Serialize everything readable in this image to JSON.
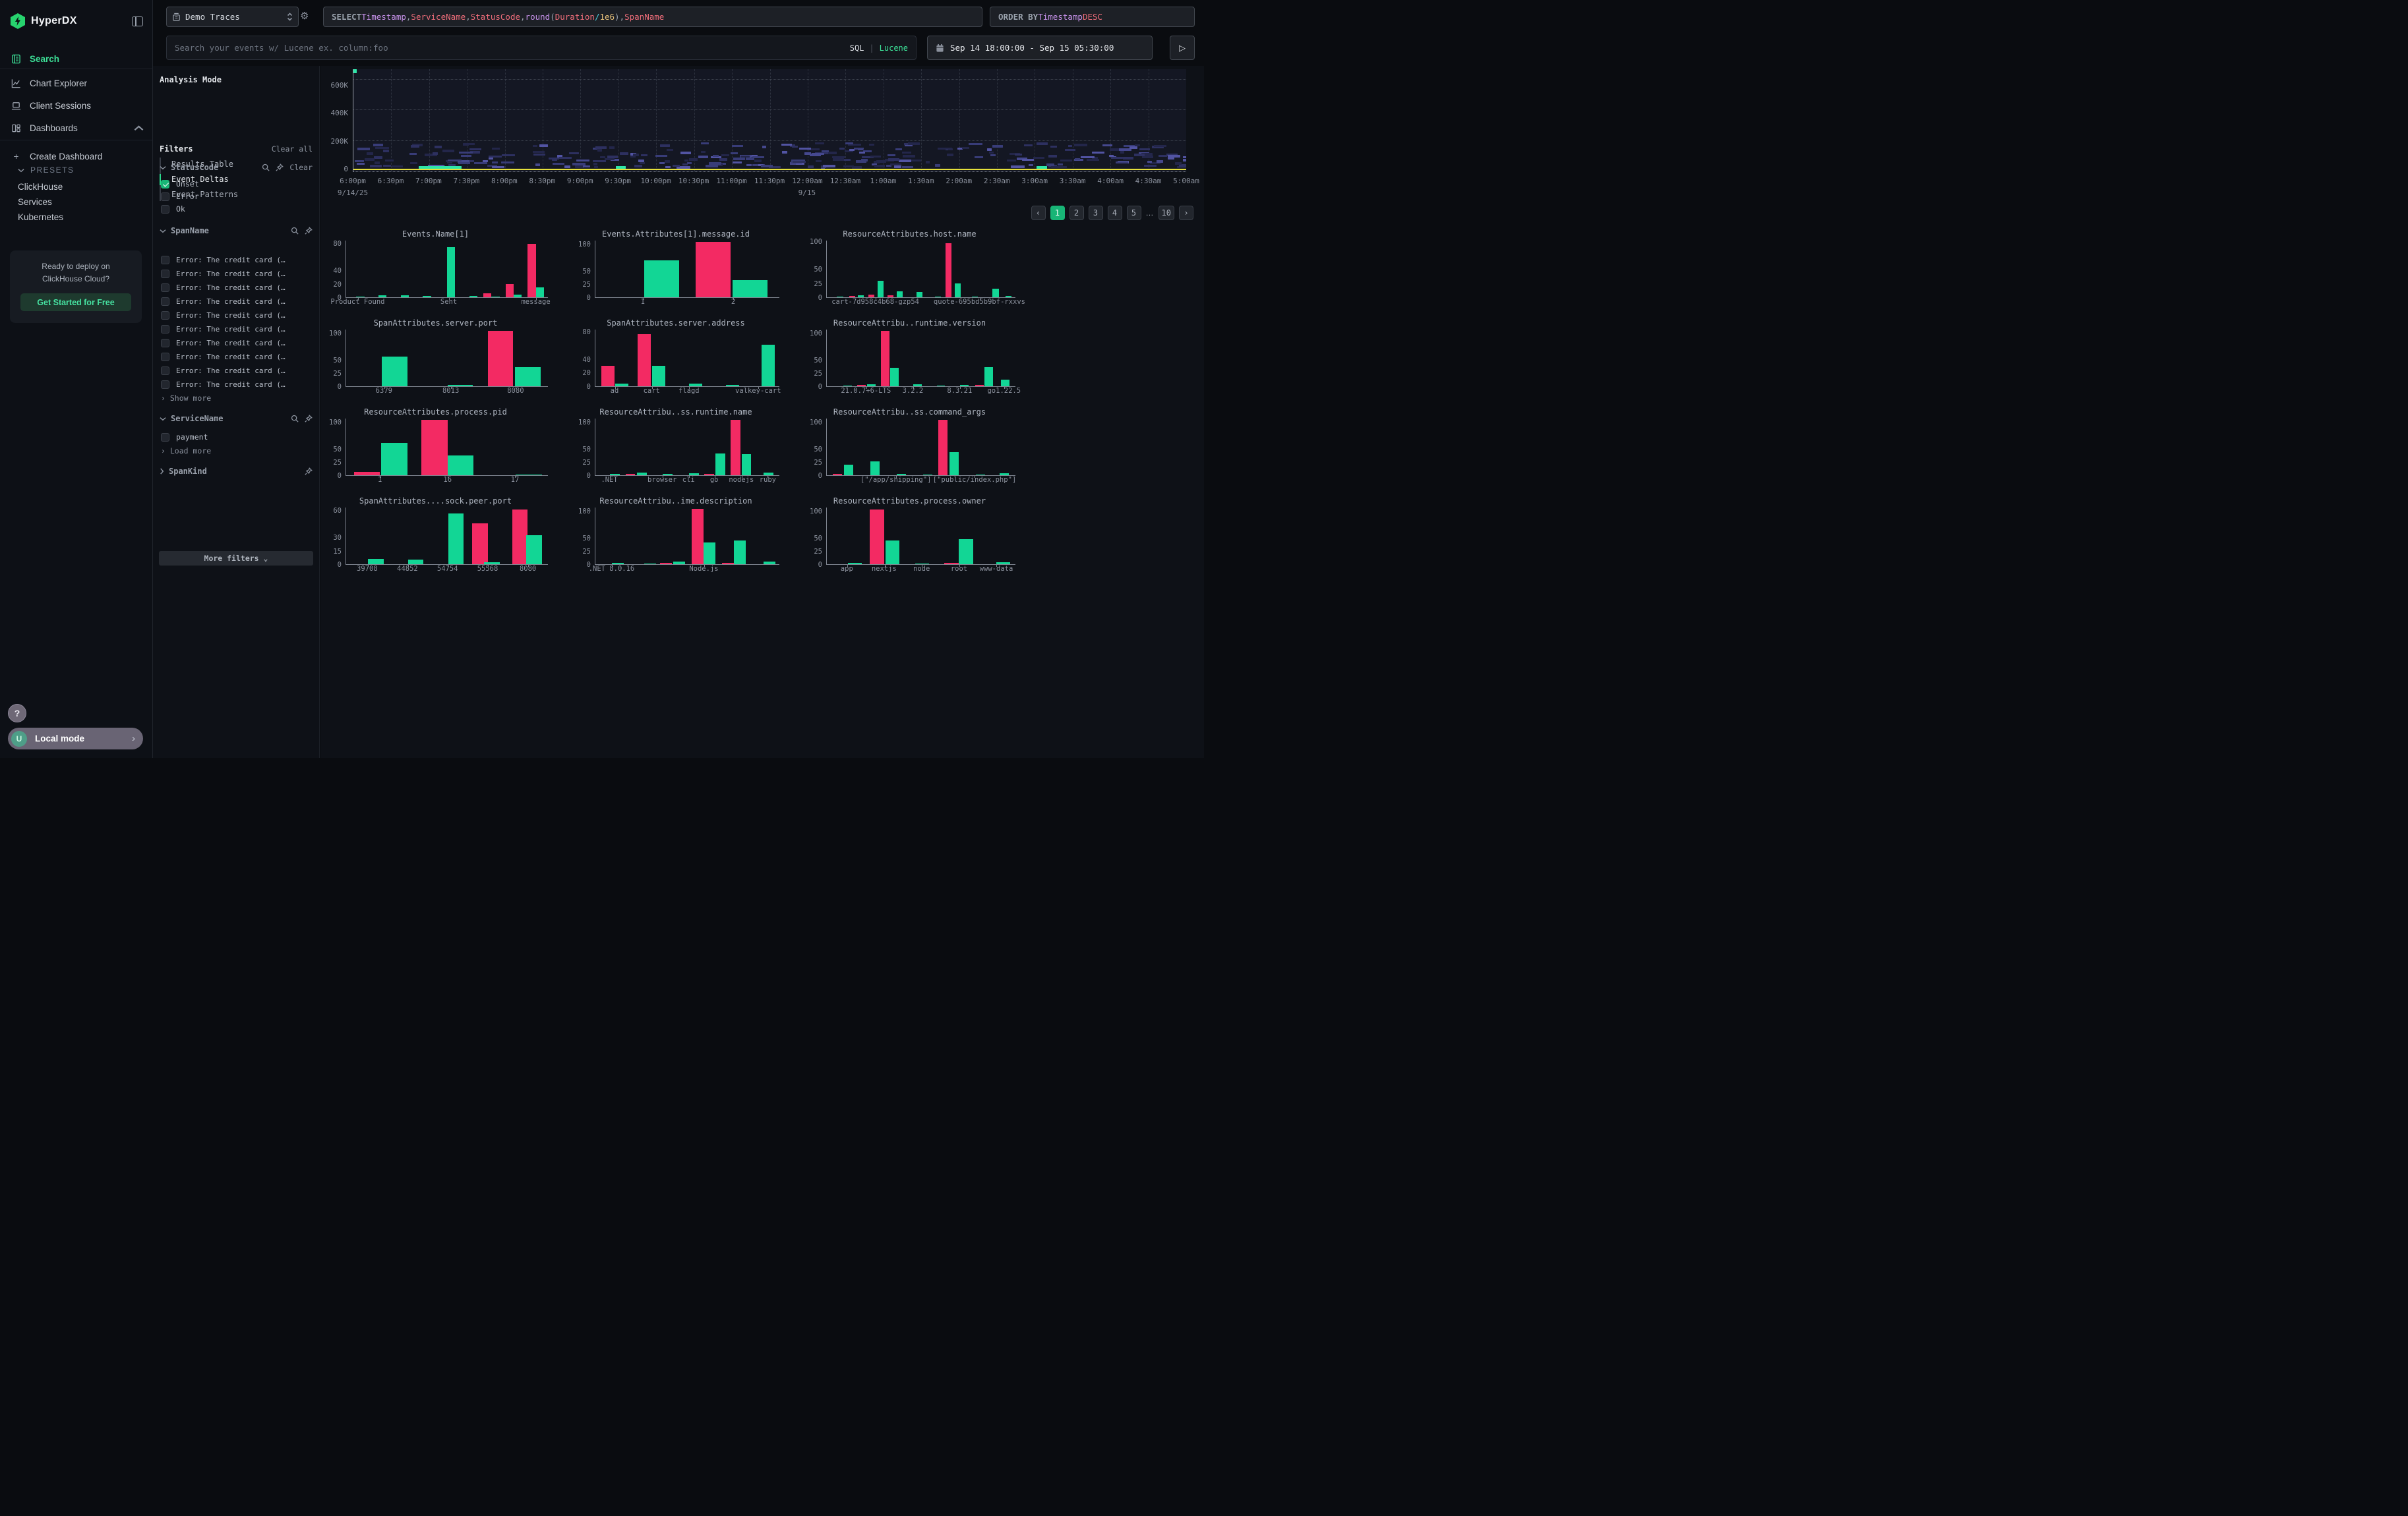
{
  "app": {
    "name": "HyperDX"
  },
  "colors": {
    "accent_green": "#3ce097",
    "bar_green": "#12d695",
    "bar_pink": "#f32a63",
    "heat_yellow": "#e6e03c",
    "active_page_green": "#18b576",
    "heat_purples": [
      "#23264a",
      "#2d3060",
      "#383c78",
      "#45488e",
      "#5254a3"
    ]
  },
  "sidebar": {
    "logo_text": "HyperDX",
    "items": [
      {
        "label": "Search",
        "active": true
      },
      {
        "label": "Chart Explorer",
        "active": false
      },
      {
        "label": "Client Sessions",
        "active": false
      },
      {
        "label": "Dashboards",
        "active": false
      }
    ],
    "create_dashboard": "Create Dashboard",
    "presets_label": "PRESETS",
    "presets": [
      "ClickHouse",
      "Services",
      "Kubernetes"
    ],
    "promo": {
      "line1": "Ready to deploy on",
      "line2": "ClickHouse Cloud?",
      "cta": "Get Started for Free"
    },
    "help": "?",
    "local_mode": {
      "avatar": "U",
      "label": "Local mode"
    }
  },
  "topbar": {
    "source": "Demo Traces",
    "select_tokens": [
      {
        "t": "SELECT ",
        "c": "kw"
      },
      {
        "t": "Timestamp",
        "c": "purple"
      },
      {
        "t": ", ",
        "c": "plain"
      },
      {
        "t": "ServiceName",
        "c": "red"
      },
      {
        "t": ", ",
        "c": "plain"
      },
      {
        "t": "StatusCode",
        "c": "red"
      },
      {
        "t": ", ",
        "c": "plain"
      },
      {
        "t": "round",
        "c": "purple"
      },
      {
        "t": "(",
        "c": "plain"
      },
      {
        "t": "Duration",
        "c": "red"
      },
      {
        "t": " ",
        "c": "plain"
      },
      {
        "t": "/",
        "c": "cyan"
      },
      {
        "t": " ",
        "c": "plain"
      },
      {
        "t": "1e6",
        "c": "gold"
      },
      {
        "t": ")",
        "c": "plain"
      },
      {
        "t": ", ",
        "c": "plain"
      },
      {
        "t": "SpanName",
        "c": "red"
      }
    ],
    "order_tokens": [
      {
        "t": "ORDER BY ",
        "c": "kw"
      },
      {
        "t": "Timestamp ",
        "c": "purple"
      },
      {
        "t": "DESC",
        "c": "red"
      }
    ],
    "search_placeholder": "Search your events w/ Lucene ex. column:foo",
    "sql_label": "SQL",
    "lang_sep": "|",
    "lucene_label": "Lucene",
    "date_range": "Sep 14 18:00:00 - Sep 15 05:30:00",
    "run_glyph": "▷"
  },
  "panel": {
    "analysis_mode_title": "Analysis Mode",
    "modes": [
      {
        "label": "Results Table",
        "active": false
      },
      {
        "label": "Event Deltas",
        "active": true
      },
      {
        "label": "Event Patterns",
        "active": false
      }
    ],
    "filters_title": "Filters",
    "clear_all": "Clear all",
    "status_code": {
      "title": "StatusCode",
      "clear": "Clear",
      "options": [
        {
          "label": "Unset",
          "checked": true
        },
        {
          "label": "Error",
          "checked": false
        },
        {
          "label": "Ok",
          "checked": false
        }
      ]
    },
    "span_name": {
      "title": "SpanName",
      "items": [
        "Error: The credit card (…",
        "Error: The credit card (…",
        "Error: The credit card (…",
        "Error: The credit card (…",
        "Error: The credit card (…",
        "Error: The credit card (…",
        "Error: The credit card (…",
        "Error: The credit card (…",
        "Error: The credit card (…",
        "Error: The credit card (…"
      ],
      "show_more": "Show more"
    },
    "service_name": {
      "title": "ServiceName",
      "options": [
        {
          "label": "payment",
          "checked": false
        }
      ],
      "load_more": "Load more"
    },
    "span_kind": {
      "title": "SpanKind"
    },
    "more_filters": "More filters"
  },
  "pagination": {
    "items": [
      {
        "t": "‹",
        "kind": "arrow"
      },
      {
        "t": "1",
        "kind": "page",
        "active": true
      },
      {
        "t": "2",
        "kind": "page"
      },
      {
        "t": "3",
        "kind": "page"
      },
      {
        "t": "4",
        "kind": "page"
      },
      {
        "t": "5",
        "kind": "page"
      },
      {
        "t": "…",
        "kind": "dots"
      },
      {
        "t": "10",
        "kind": "page"
      },
      {
        "t": "›",
        "kind": "arrow"
      }
    ]
  },
  "chart_data": [
    {
      "type": "heatmap",
      "x_labels": [
        "6:00pm",
        "6:30pm",
        "7:00pm",
        "7:30pm",
        "8:00pm",
        "8:30pm",
        "9:00pm",
        "9:30pm",
        "10:00pm",
        "10:30pm",
        "11:00pm",
        "11:30pm",
        "12:00am",
        "12:30am",
        "1:00am",
        "1:30am",
        "2:00am",
        "2:30am",
        "3:00am",
        "3:30am",
        "4:00am",
        "4:30am",
        "5:00am"
      ],
      "date_labels": [
        {
          "label": "9/14/25",
          "pos": 0.0
        },
        {
          "label": "9/15",
          "pos": 0.545
        }
      ],
      "y_tick_labels": [
        "600K",
        "400K",
        "200K",
        "0"
      ],
      "y_tick_values": [
        600000,
        400000,
        200000,
        0
      ],
      "y_top_value": 670000,
      "description": "Event count heat band between 0 and ~190K with solid yellow baseline at 0",
      "green_marks": [
        {
          "x": 0.0,
          "top": 0,
          "w": 0.004,
          "h": 6
        },
        {
          "x": 0.078,
          "w": 0.02
        },
        {
          "x": 0.095,
          "w": 0.014
        },
        {
          "x": 0.108,
          "w": 0.022
        },
        {
          "x": 0.315,
          "w": 0.012
        },
        {
          "x": 0.82,
          "w": 0.013
        }
      ]
    },
    {
      "type": "bar",
      "title": "Events.Name[1]",
      "ymax": 85,
      "yticks": [
        0,
        20,
        40,
        80
      ],
      "bw": 0.04,
      "bars": [
        {
          "p": 0.07,
          "v": 1,
          "c": "g"
        },
        {
          "p": 0.18,
          "v": 3,
          "c": "g"
        },
        {
          "p": 0.29,
          "v": 3,
          "c": "g"
        },
        {
          "p": 0.4,
          "v": 2,
          "c": "g"
        },
        {
          "p": 0.52,
          "v": 75,
          "c": "g"
        },
        {
          "p": 0.63,
          "v": 1.5,
          "c": "g"
        },
        {
          "p": 0.7,
          "v": 6,
          "c": "p"
        },
        {
          "p": 0.74,
          "v": 0.7,
          "c": "g"
        },
        {
          "p": 0.81,
          "v": 20,
          "c": "p"
        },
        {
          "p": 0.85,
          "v": 4,
          "c": "g"
        },
        {
          "p": 0.92,
          "v": 80,
          "c": "p"
        },
        {
          "p": 0.96,
          "v": 15,
          "c": "g"
        }
      ],
      "xticks": [
        {
          "p": 0.06,
          "label": "Product Found"
        },
        {
          "p": 0.51,
          "label": "Sent"
        },
        {
          "p": 0.94,
          "label": "message"
        }
      ]
    },
    {
      "type": "bar",
      "title": "Events.Attributes[1].message.id",
      "ymax": 108,
      "yticks": [
        0,
        25,
        50,
        100
      ],
      "bw": 0.19,
      "bars": [
        {
          "p": 0.36,
          "v": 70,
          "c": "g"
        },
        {
          "p": 0.64,
          "v": 106,
          "c": "p"
        },
        {
          "p": 0.84,
          "v": 33,
          "c": "g"
        }
      ],
      "xticks": [
        {
          "p": 0.26,
          "label": "1"
        },
        {
          "p": 0.75,
          "label": "2"
        }
      ]
    },
    {
      "type": "bar",
      "title": "ResourceAttributes.host.name",
      "ymax": 102,
      "yticks": [
        0,
        25,
        50,
        100
      ],
      "bw": 0.032,
      "bars": [
        {
          "p": 0.07,
          "v": 1,
          "c": "g"
        },
        {
          "p": 0.134,
          "v": 2,
          "c": "p"
        },
        {
          "p": 0.18,
          "v": 3,
          "c": "g"
        },
        {
          "p": 0.236,
          "v": 5,
          "c": "p"
        },
        {
          "p": 0.285,
          "v": 30,
          "c": "g"
        },
        {
          "p": 0.337,
          "v": 3,
          "c": "p"
        },
        {
          "p": 0.385,
          "v": 11,
          "c": "g"
        },
        {
          "p": 0.49,
          "v": 9,
          "c": "g"
        },
        {
          "p": 0.59,
          "v": 0.8,
          "c": "g"
        },
        {
          "p": 0.645,
          "v": 97,
          "c": "p"
        },
        {
          "p": 0.695,
          "v": 25,
          "c": "g"
        },
        {
          "p": 0.785,
          "v": 0.8,
          "c": "g"
        },
        {
          "p": 0.895,
          "v": 15,
          "c": "g"
        },
        {
          "p": 0.962,
          "v": 2.5,
          "c": "g"
        }
      ],
      "xticks": [
        {
          "p": 0.26,
          "label": "cart-7d958c4b68-gzp54"
        },
        {
          "p": 0.81,
          "label": "quote-695bd5b9bf-rxxvs"
        }
      ]
    },
    {
      "type": "bar",
      "title": "SpanAttributes.server.port",
      "ymax": 108,
      "yticks": [
        0,
        25,
        50,
        100
      ],
      "bw": 0.125,
      "bars": [
        {
          "p": 0.24,
          "v": 57,
          "c": "g"
        },
        {
          "p": 0.565,
          "v": 3,
          "c": "g"
        },
        {
          "p": 0.765,
          "v": 106,
          "c": "p"
        },
        {
          "p": 0.9,
          "v": 37,
          "c": "g"
        }
      ],
      "xticks": [
        {
          "p": 0.19,
          "label": "6379"
        },
        {
          "p": 0.52,
          "label": "8013"
        },
        {
          "p": 0.84,
          "label": "8080"
        }
      ]
    },
    {
      "type": "bar",
      "title": "SpanAttributes.server.address",
      "ymax": 84,
      "yticks": [
        0,
        20,
        40,
        80
      ],
      "bw": 0.073,
      "bars": [
        {
          "p": 0.067,
          "v": 30,
          "c": "p"
        },
        {
          "p": 0.143,
          "v": 4,
          "c": "g"
        },
        {
          "p": 0.265,
          "v": 77,
          "c": "p"
        },
        {
          "p": 0.344,
          "v": 30,
          "c": "g"
        },
        {
          "p": 0.545,
          "v": 3.5,
          "c": "g"
        },
        {
          "p": 0.745,
          "v": 1.5,
          "c": "g"
        },
        {
          "p": 0.94,
          "v": 62,
          "c": "g"
        }
      ],
      "xticks": [
        {
          "p": 0.107,
          "label": "ad"
        },
        {
          "p": 0.308,
          "label": "cart"
        },
        {
          "p": 0.51,
          "label": "flagd"
        },
        {
          "p": 0.885,
          "label": "valkey-cart"
        }
      ]
    },
    {
      "type": "bar",
      "title": "ResourceAttribu..runtime.version",
      "ymax": 108,
      "yticks": [
        0,
        25,
        50,
        100
      ],
      "bw": 0.045,
      "bars": [
        {
          "p": 0.11,
          "v": 0.8,
          "c": "g"
        },
        {
          "p": 0.185,
          "v": 2,
          "c": "p"
        },
        {
          "p": 0.235,
          "v": 4,
          "c": "g"
        },
        {
          "p": 0.31,
          "v": 106,
          "c": "p"
        },
        {
          "p": 0.358,
          "v": 35,
          "c": "g"
        },
        {
          "p": 0.482,
          "v": 4,
          "c": "g"
        },
        {
          "p": 0.605,
          "v": 1.5,
          "c": "g"
        },
        {
          "p": 0.73,
          "v": 3,
          "c": "g"
        },
        {
          "p": 0.81,
          "v": 3,
          "c": "p"
        },
        {
          "p": 0.857,
          "v": 37,
          "c": "g"
        },
        {
          "p": 0.945,
          "v": 13,
          "c": "g"
        }
      ],
      "xticks": [
        {
          "p": 0.21,
          "label": "21.0.7+6-LTS"
        },
        {
          "p": 0.458,
          "label": "3.2.2"
        },
        {
          "p": 0.705,
          "label": "8.3.21"
        },
        {
          "p": 0.94,
          "label": "go1.22.5"
        }
      ]
    },
    {
      "type": "bar",
      "title": "ResourceAttributes.process.pid",
      "ymax": 108,
      "yticks": [
        0,
        25,
        50,
        100
      ],
      "bw": 0.13,
      "bars": [
        {
          "p": 0.103,
          "v": 6,
          "c": "p"
        },
        {
          "p": 0.238,
          "v": 62,
          "c": "g"
        },
        {
          "p": 0.437,
          "v": 106,
          "c": "p"
        },
        {
          "p": 0.567,
          "v": 38,
          "c": "g"
        },
        {
          "p": 0.905,
          "v": 0.8,
          "c": "g"
        }
      ],
      "xticks": [
        {
          "p": 0.17,
          "label": "1"
        },
        {
          "p": 0.504,
          "label": "16"
        },
        {
          "p": 0.837,
          "label": "17"
        }
      ]
    },
    {
      "type": "bar",
      "title": "ResourceAttribu..ss.runtime.name",
      "ymax": 108,
      "yticks": [
        0,
        25,
        50,
        100
      ],
      "bw": 0.053,
      "bars": [
        {
          "p": 0.107,
          "v": 2,
          "c": "g"
        },
        {
          "p": 0.19,
          "v": 2.5,
          "c": "p"
        },
        {
          "p": 0.254,
          "v": 5,
          "c": "g"
        },
        {
          "p": 0.393,
          "v": 2.5,
          "c": "g"
        },
        {
          "p": 0.536,
          "v": 3.5,
          "c": "g"
        },
        {
          "p": 0.619,
          "v": 3,
          "c": "p"
        },
        {
          "p": 0.679,
          "v": 42,
          "c": "g"
        },
        {
          "p": 0.762,
          "v": 106,
          "c": "p"
        },
        {
          "p": 0.821,
          "v": 40,
          "c": "g"
        },
        {
          "p": 0.94,
          "v": 4.5,
          "c": "g"
        }
      ],
      "xticks": [
        {
          "p": 0.079,
          "label": ".NET"
        },
        {
          "p": 0.365,
          "label": "browser"
        },
        {
          "p": 0.508,
          "label": "cli"
        },
        {
          "p": 0.647,
          "label": "go"
        },
        {
          "p": 0.794,
          "label": "nodejs"
        },
        {
          "p": 0.937,
          "label": "ruby"
        }
      ]
    },
    {
      "type": "bar",
      "title": "ResourceAttribu..ss.command_args",
      "ymax": 108,
      "yticks": [
        0,
        25,
        50,
        100
      ],
      "bw": 0.049,
      "bars": [
        {
          "p": 0.056,
          "v": 3,
          "c": "p"
        },
        {
          "p": 0.116,
          "v": 20,
          "c": "g"
        },
        {
          "p": 0.256,
          "v": 27,
          "c": "g"
        },
        {
          "p": 0.396,
          "v": 3,
          "c": "g"
        },
        {
          "p": 0.536,
          "v": 0.8,
          "c": "g"
        },
        {
          "p": 0.616,
          "v": 106,
          "c": "p"
        },
        {
          "p": 0.676,
          "v": 44,
          "c": "g"
        },
        {
          "p": 0.816,
          "v": 0.8,
          "c": "g"
        },
        {
          "p": 0.94,
          "v": 4,
          "c": "g"
        }
      ],
      "xticks": [
        {
          "p": 0.368,
          "label": "[\"/app/shipping\"]"
        },
        {
          "p": 0.784,
          "label": "[\"public/index.php\"]"
        }
      ]
    },
    {
      "type": "bar",
      "title": "SpanAttributes....sock.peer.port",
      "ymax": 64,
      "yticks": [
        0,
        15,
        30,
        60
      ],
      "bw": 0.077,
      "bars": [
        {
          "p": 0.147,
          "v": 6,
          "c": "g"
        },
        {
          "p": 0.345,
          "v": 5,
          "c": "g"
        },
        {
          "p": 0.544,
          "v": 57,
          "c": "g"
        },
        {
          "p": 0.663,
          "v": 46,
          "c": "p"
        },
        {
          "p": 0.722,
          "v": 2,
          "c": "g"
        },
        {
          "p": 0.861,
          "v": 62,
          "c": "p"
        },
        {
          "p": 0.932,
          "v": 33,
          "c": "g"
        }
      ],
      "xticks": [
        {
          "p": 0.107,
          "label": "39708"
        },
        {
          "p": 0.306,
          "label": "44852"
        },
        {
          "p": 0.504,
          "label": "54754"
        },
        {
          "p": 0.702,
          "label": "55568"
        },
        {
          "p": 0.901,
          "label": "8080"
        }
      ]
    },
    {
      "type": "bar",
      "title": "ResourceAttribu..ime.description",
      "ymax": 108,
      "yticks": [
        0,
        25,
        50,
        100
      ],
      "bw": 0.065,
      "bars": [
        {
          "p": 0.123,
          "v": 2,
          "c": "g"
        },
        {
          "p": 0.298,
          "v": 0.8,
          "c": "g"
        },
        {
          "p": 0.385,
          "v": 2,
          "c": "p"
        },
        {
          "p": 0.456,
          "v": 4.5,
          "c": "g"
        },
        {
          "p": 0.556,
          "v": 106,
          "c": "p"
        },
        {
          "p": 0.619,
          "v": 42,
          "c": "g"
        },
        {
          "p": 0.722,
          "v": 3,
          "c": "p"
        },
        {
          "p": 0.786,
          "v": 45,
          "c": "g"
        },
        {
          "p": 0.945,
          "v": 4.5,
          "c": "g"
        }
      ],
      "xticks": [
        {
          "p": 0.091,
          "label": ".NET 8.0.16"
        },
        {
          "p": 0.591,
          "label": "Node.js"
        }
      ]
    },
    {
      "type": "bar",
      "title": "ResourceAttributes.process.owner",
      "ymax": 108,
      "yticks": [
        0,
        25,
        50,
        100
      ],
      "bw": 0.074,
      "bars": [
        {
          "p": 0.149,
          "v": 2,
          "c": "g"
        },
        {
          "p": 0.266,
          "v": 104,
          "c": "p"
        },
        {
          "p": 0.347,
          "v": 45,
          "c": "g"
        },
        {
          "p": 0.504,
          "v": 0.8,
          "c": "g"
        },
        {
          "p": 0.661,
          "v": 3,
          "c": "p"
        },
        {
          "p": 0.738,
          "v": 48,
          "c": "g"
        },
        {
          "p": 0.935,
          "v": 4,
          "c": "g"
        }
      ],
      "xticks": [
        {
          "p": 0.109,
          "label": "app"
        },
        {
          "p": 0.306,
          "label": "nextjs"
        },
        {
          "p": 0.504,
          "label": "node"
        },
        {
          "p": 0.702,
          "label": "root"
        },
        {
          "p": 0.899,
          "label": "www-data"
        }
      ]
    }
  ]
}
